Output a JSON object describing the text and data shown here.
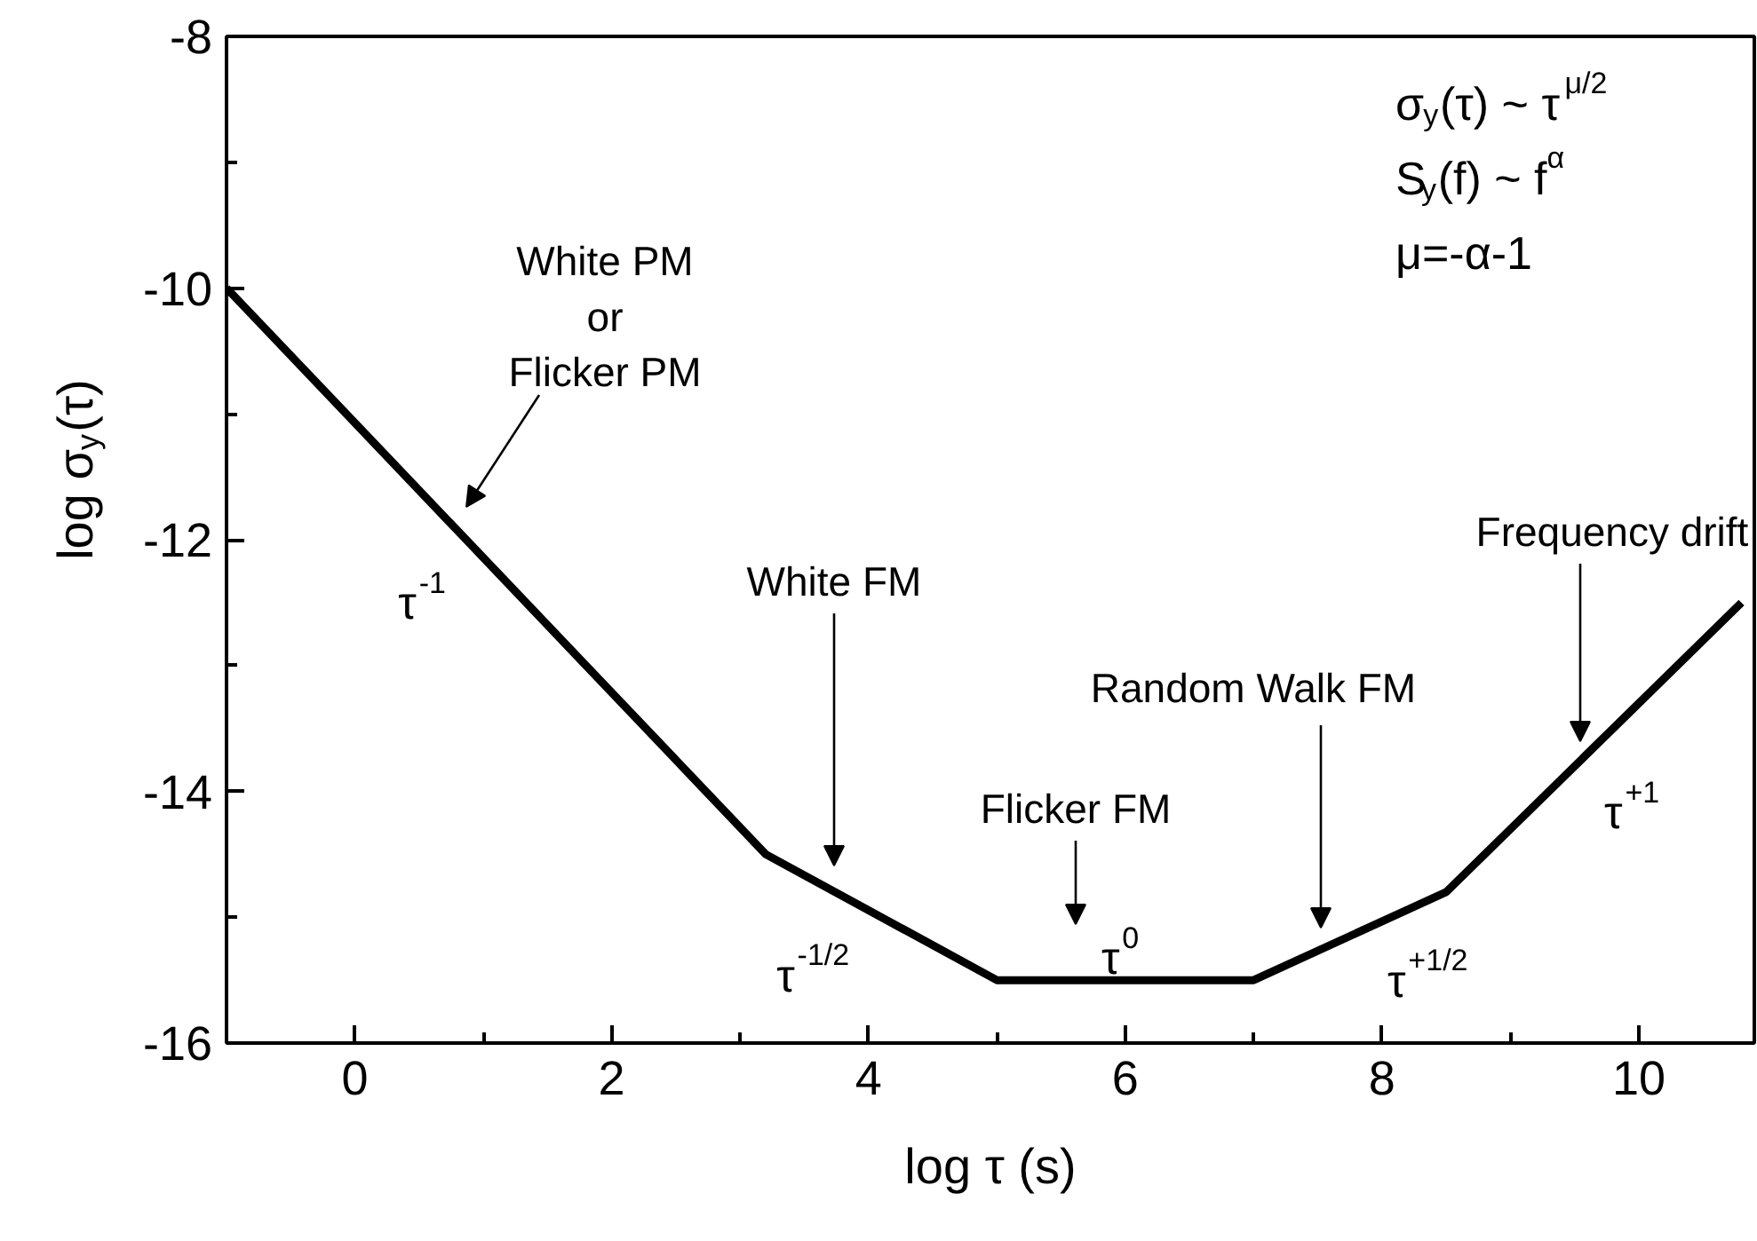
{
  "chart_data": {
    "type": "line",
    "xlabel": "log τ (s)",
    "ylabel": "log σ$_{y}$(τ)",
    "x": [
      -1,
      3.2,
      5,
      7,
      8.5,
      10.8
    ],
    "series": [
      {
        "color": "#000000",
        "values": [
          -10,
          -14.5,
          -15.5,
          -15.5,
          -14.8,
          -12.5
        ]
      }
    ],
    "xlim": [
      -1,
      10.9
    ],
    "ylim": [
      -16,
      -8
    ],
    "xticks": [
      {
        "value": -1,
        "label": null
      },
      0,
      {
        "value": 1,
        "label": null
      },
      2,
      {
        "value": 3,
        "label": null
      },
      4,
      {
        "value": 5,
        "label": null
      },
      6,
      {
        "value": 7,
        "label": null
      },
      8,
      {
        "value": 9,
        "label": null
      },
      10
    ],
    "yticks": [
      -16,
      {
        "value": -15,
        "label": null
      },
      -14,
      {
        "value": -13,
        "label": null
      },
      -12,
      {
        "value": -11,
        "label": null
      },
      -10,
      {
        "value": -9,
        "label": null
      },
      -8
    ],
    "line_style": "solid",
    "annotations": [
      "σ$_{y}$(τ) ~ τ$^{μ/2}$",
      "S$_{y}$(f) ~ f$^{α}$",
      "μ=-α-1",
      "White PM\nor\nFlicker PM",
      "White FM",
      "Flicker FM",
      "Random Walk FM",
      "Frequency drift",
      "τ$^{-1}$",
      "τ$^{-1/2}$",
      "τ$^{0}$",
      "τ$^{+1/2}$",
      "τ$^{+1}$"
    ]
  }
}
